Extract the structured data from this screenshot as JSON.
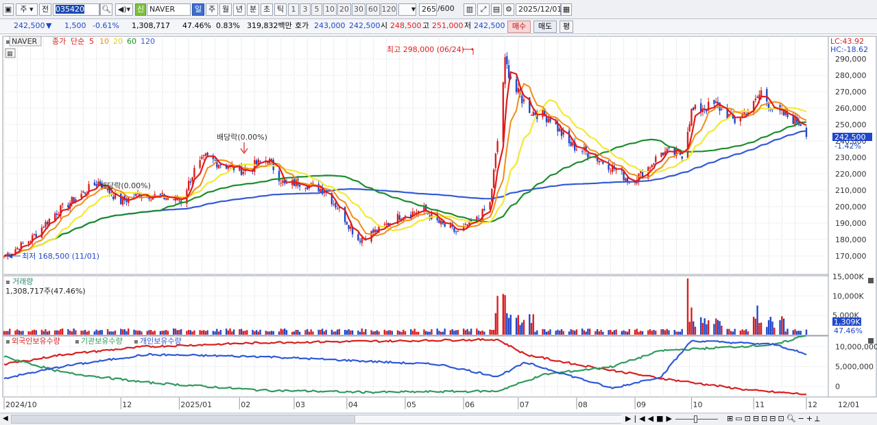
{
  "toolbar": {
    "market_label": "주",
    "type_label": "전",
    "code": "035420",
    "shin_label": "신",
    "stock_name": "NAVER",
    "period_day": "일",
    "period_week": "주",
    "period_month": "월",
    "period_year": "년",
    "period_minute": "분",
    "period_second": "초",
    "period_tick": "틱",
    "intervals": [
      "1",
      "3",
      "5",
      "10",
      "20",
      "30",
      "60",
      "120"
    ],
    "count": "265",
    "count_total": "/600",
    "date": "2025/12/01"
  },
  "quote": {
    "price": "242,500",
    "change": "1,500",
    "change_pct": "-0.61%",
    "volume": "1,308,717",
    "volume_ratio": "47.46%",
    "turnover_pct": "0.83%",
    "amount": "319,832백만",
    "hoga_label": "호가",
    "bid": "243,000",
    "ask": "242,500",
    "open_label": "시",
    "open": "248,500",
    "high_label": "고",
    "high": "251,000",
    "low_label": "저",
    "low": "242,500",
    "buy_label": "매수",
    "sell_label": "매도",
    "avg_label": "평"
  },
  "legend": {
    "name": "NAVER",
    "close_label": "종가",
    "simple_label": "단순",
    "ma_periods": [
      "5",
      "10",
      "20",
      "60",
      "120"
    ]
  },
  "annotations": {
    "lc": "LC:43.92",
    "hc": "HC:-18.62",
    "high_marker": "최고 298,000 (06/24)",
    "low_marker": "최저 168,500 (11/01)",
    "dividend_1": "배당락(0.00%)",
    "dividend_2": "배당락(0.00%)",
    "current_price_tag": "242,500",
    "current_pct_tag": "-1.42%",
    "volume_title": "거래량",
    "volume_info": "1,308,717주(47.46%)",
    "volume_tag": "1,309K",
    "volume_pct_tag": "47.46%",
    "holdings_series": [
      "외국인보유수량",
      "기관보유수량",
      "개인보유수량"
    ]
  },
  "colors": {
    "up": "#dd1c1c",
    "down": "#1f47c9",
    "ma5": "#e01b1b",
    "ma10": "#f08c16",
    "ma20": "#f2e930",
    "ma60": "#1c8c2c",
    "ma120": "#3358d6",
    "foreign": "#d81f1f",
    "institution": "#2f9a5c",
    "individual": "#2e58d8"
  },
  "chart_data": [
    {
      "type": "candlestick",
      "title": "NAVER",
      "ylim": [
        160000,
        300000
      ],
      "y_ticks": [
        "290,000",
        "280,000",
        "270,000",
        "260,000",
        "250,000",
        "240,000",
        "230,000",
        "220,000",
        "210,000",
        "200,000",
        "190,000",
        "180,000",
        "170,000"
      ],
      "x_ticks": [
        "2024/10",
        "12",
        "2025/01",
        "02",
        "03",
        "04",
        "05",
        "06",
        "07",
        "08",
        "09",
        "10",
        "11",
        "12",
        "12/01"
      ],
      "close_anchors": [
        [
          "2024-10-01",
          170000
        ],
        [
          "2024-10-15",
          180000
        ],
        [
          "2024-10-28",
          196000
        ],
        [
          "2024-11-08",
          205000
        ],
        [
          "2024-11-20",
          215000
        ],
        [
          "2024-12-02",
          203000
        ],
        [
          "2024-12-12",
          208000
        ],
        [
          "2025-01-03",
          204000
        ],
        [
          "2025-01-10",
          222000
        ],
        [
          "2025-01-16",
          230000
        ],
        [
          "2025-01-24",
          226000
        ],
        [
          "2025-02-05",
          222000
        ],
        [
          "2025-02-18",
          229000
        ],
        [
          "2025-02-27",
          213000
        ],
        [
          "2025-03-07",
          215000
        ],
        [
          "2025-03-20",
          210000
        ],
        [
          "2025-03-28",
          198000
        ],
        [
          "2025-04-07",
          180000
        ],
        [
          "2025-04-18",
          186000
        ],
        [
          "2025-04-30",
          195000
        ],
        [
          "2025-05-12",
          198000
        ],
        [
          "2025-05-20",
          190000
        ],
        [
          "2025-05-30",
          184000
        ],
        [
          "2025-06-10",
          193000
        ],
        [
          "2025-06-16",
          202000
        ],
        [
          "2025-06-20",
          240000
        ],
        [
          "2025-06-24",
          288000
        ],
        [
          "2025-06-30",
          270000
        ],
        [
          "2025-07-08",
          258000
        ],
        [
          "2025-07-18",
          254000
        ],
        [
          "2025-07-28",
          238000
        ],
        [
          "2025-08-08",
          232000
        ],
        [
          "2025-08-20",
          224000
        ],
        [
          "2025-08-29",
          216000
        ],
        [
          "2025-09-05",
          220000
        ],
        [
          "2025-09-15",
          233000
        ],
        [
          "2025-09-26",
          232000
        ],
        [
          "2025-10-01",
          258000
        ],
        [
          "2025-10-14",
          262000
        ],
        [
          "2025-10-24",
          252000
        ],
        [
          "2025-11-03",
          262000
        ],
        [
          "2025-11-07",
          270000
        ],
        [
          "2025-11-14",
          258000
        ],
        [
          "2025-11-21",
          255000
        ],
        [
          "2025-11-28",
          251000
        ],
        [
          "2025-12-01",
          242500
        ]
      ],
      "highest": {
        "value": 298000,
        "date": "06/24"
      },
      "lowest": {
        "value": 168500,
        "date": "11/01"
      },
      "series": [
        {
          "name": "5"
        },
        {
          "name": "10"
        },
        {
          "name": "20"
        },
        {
          "name": "60"
        },
        {
          "name": "120"
        }
      ]
    },
    {
      "type": "bar",
      "title": "거래량",
      "ylim": [
        0,
        15000
      ],
      "y_ticks": [
        "15,000K",
        "10,000K",
        "5,000K"
      ],
      "last_value_k": 1309,
      "spikes_k": [
        [
          "2025-06-20",
          10000
        ],
        [
          "2025-06-23",
          10500
        ],
        [
          "2025-06-24",
          10200
        ],
        [
          "2025-09-29",
          14500
        ],
        [
          "2025-10-01",
          7000
        ],
        [
          "2025-11-05",
          7500
        ]
      ]
    },
    {
      "type": "line",
      "title": "외국인보유수량 · 기관보유수량 · 개인보유수량",
      "ylim": [
        -2500000,
        12500000
      ],
      "y_ticks": [
        "10,000,000",
        "5,000,000",
        "0"
      ],
      "series": [
        {
          "name": "외국인보유수량",
          "anchors": [
            [
              "2024-10-01",
              5500000
            ],
            [
              "2024-11-01",
              8000000
            ],
            [
              "2024-12-15",
              10000000
            ],
            [
              "2025-02-15",
              11000000
            ],
            [
              "2025-06-20",
              11800000
            ],
            [
              "2025-07-05",
              8000000
            ],
            [
              "2025-08-01",
              5500000
            ],
            [
              "2025-09-15",
              2000000
            ],
            [
              "2025-11-01",
              -1000000
            ],
            [
              "2025-12-01",
              -2000000
            ]
          ]
        },
        {
          "name": "기관보유수량",
          "anchors": [
            [
              "2024-10-01",
              7500000
            ],
            [
              "2024-11-01",
              3500000
            ],
            [
              "2024-12-15",
              1000000
            ],
            [
              "2025-02-15",
              -1000000
            ],
            [
              "2025-04-15",
              -1500000
            ],
            [
              "2025-06-20",
              -1200000
            ],
            [
              "2025-07-15",
              3000000
            ],
            [
              "2025-08-20",
              5000000
            ],
            [
              "2025-09-15",
              9000000
            ],
            [
              "2025-11-15",
              10500000
            ],
            [
              "2025-12-01",
              13000000
            ]
          ]
        },
        {
          "name": "개인보유수량",
          "anchors": [
            [
              "2024-10-01",
              2000000
            ],
            [
              "2024-11-01",
              5000000
            ],
            [
              "2024-12-15",
              8000000
            ],
            [
              "2025-02-15",
              7500000
            ],
            [
              "2025-05-20",
              5500000
            ],
            [
              "2025-06-20",
              2500000
            ],
            [
              "2025-07-05",
              6000000
            ],
            [
              "2025-08-20",
              -500000
            ],
            [
              "2025-09-15",
              2500000
            ],
            [
              "2025-10-01",
              11500000
            ],
            [
              "2025-11-15",
              10500000
            ],
            [
              "2025-12-01",
              8000000
            ]
          ]
        }
      ]
    }
  ]
}
